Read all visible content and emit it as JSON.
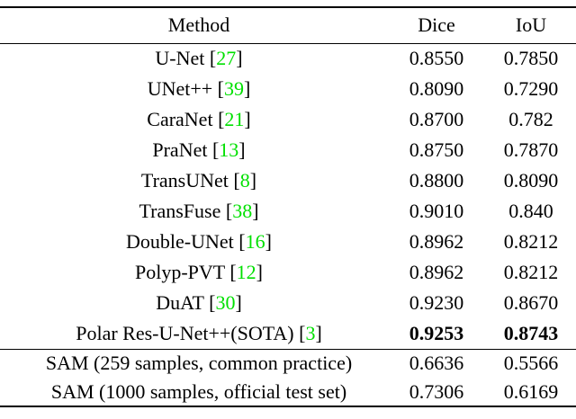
{
  "table": {
    "columns": [
      "Method",
      "Dice",
      "IoU"
    ],
    "citation_color": "#00e000",
    "cite_brackets": {
      "open": "[",
      "close": "]"
    },
    "rows": [
      {
        "method": "U-Net",
        "cite": "27",
        "dice": "0.8550",
        "iou": "0.7850",
        "bold": false
      },
      {
        "method": "UNet++",
        "cite": "39",
        "dice": "0.8090",
        "iou": "0.7290",
        "bold": false
      },
      {
        "method": "CaraNet",
        "cite": "21",
        "dice": "0.8700",
        "iou": "0.782",
        "bold": false
      },
      {
        "method": "PraNet",
        "cite": "13",
        "dice": "0.8750",
        "iou": "0.7870",
        "bold": false
      },
      {
        "method": "TransUNet",
        "cite": "8",
        "dice": "0.8800",
        "iou": "0.8090",
        "bold": false
      },
      {
        "method": "TransFuse",
        "cite": "38",
        "dice": "0.9010",
        "iou": "0.840",
        "bold": false
      },
      {
        "method": "Double-UNet",
        "cite": "16",
        "dice": "0.8962",
        "iou": "0.8212",
        "bold": false
      },
      {
        "method": "Polyp-PVT",
        "cite": "12",
        "dice": "0.8962",
        "iou": "0.8212",
        "bold": false
      },
      {
        "method": "DuAT",
        "cite": "30",
        "dice": "0.9230",
        "iou": "0.8670",
        "bold": false
      },
      {
        "method": "Polar Res-U-Net++(SOTA)",
        "cite": "3",
        "dice": "0.9253",
        "iou": "0.8743",
        "bold": true
      }
    ],
    "sam_rows": [
      {
        "method": "SAM (259 samples, common practice)",
        "cite": null,
        "dice": "0.6636",
        "iou": "0.5566",
        "bold": false
      },
      {
        "method": "SAM (1000 samples, official test set)",
        "cite": null,
        "dice": "0.7306",
        "iou": "0.6169",
        "bold": false
      }
    ]
  }
}
